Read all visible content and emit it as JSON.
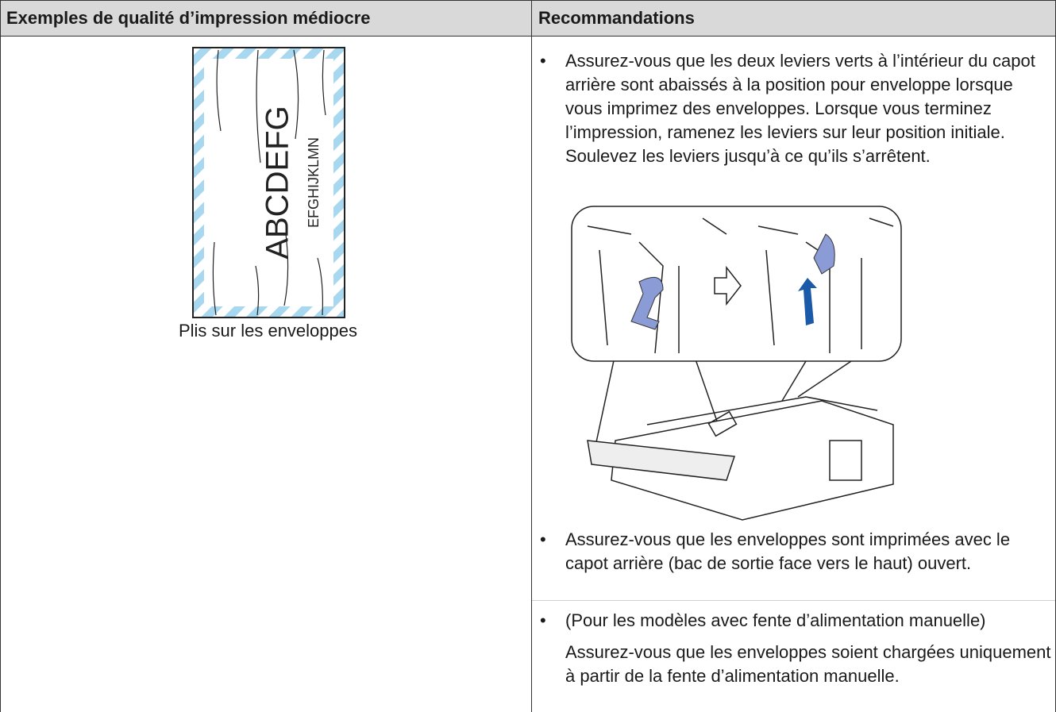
{
  "table": {
    "header": [
      "Exemples de qualité d’impression médiocre",
      "Recommandations"
    ],
    "example": {
      "sample_text": [
        "ABCDEFG",
        "EFGHIJKLMN"
      ],
      "caption": "Plis sur les enveloppes"
    },
    "recommendations": [
      {
        "text": "Assurez-vous que les deux leviers verts à l’intérieur du capot arrière sont abaissés à la position pour enveloppe lorsque vous imprimez des enveloppes. Lorsque vous terminez l’impression, ramenez les leviers sur leur position initiale. Soulevez les leviers jusqu’à ce qu’ils s’arrêtent."
      },
      {
        "text": "Assurez-vous que les enveloppes sont imprimées avec le capot arrière (bac de sortie face vers le haut) ouvert."
      },
      {
        "text": "(Pour les modèles avec fente d’alimentation manuelle)",
        "note": "Assurez-vous que les enveloppes soient chargées uniquement à partir de la fente d’alimentation manuelle."
      }
    ]
  }
}
